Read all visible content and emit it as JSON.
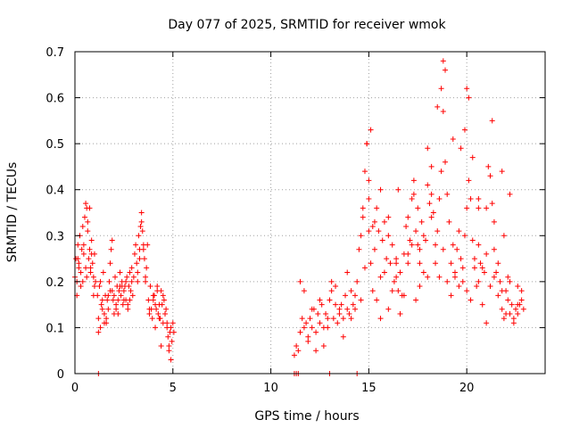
{
  "chart_data": {
    "type": "scatter",
    "title": "Day 077 of 2025, SRMTID for receiver wmok",
    "xlabel": "GPS time / hours",
    "ylabel": "SRMTID / TECUs",
    "xlim": [
      0,
      24
    ],
    "ylim": [
      0,
      0.7
    ],
    "xticks": [
      0,
      5,
      10,
      15,
      20
    ],
    "xtick_labels": [
      "0",
      "5",
      "10",
      "15",
      "20"
    ],
    "yticks": [
      0,
      0.1,
      0.2,
      0.3,
      0.4,
      0.5,
      0.6,
      0.7
    ],
    "ytick_labels": [
      "0",
      "0.1",
      "0.2",
      "0.3",
      "0.4",
      "0.5",
      "0.6",
      "0.7"
    ],
    "grid": true,
    "marker": "+",
    "color": "#ff0000",
    "series": [
      {
        "name": "SRMTID",
        "x": [
          0.0,
          0.05,
          0.1,
          0.15,
          0.2,
          0.25,
          0.3,
          0.35,
          0.4,
          0.45,
          0.5,
          0.55,
          0.6,
          0.65,
          0.7,
          0.75,
          0.8,
          0.85,
          0.9,
          0.95,
          1.0,
          1.05,
          0.1,
          0.2,
          0.3,
          0.45,
          0.55,
          0.65,
          0.75,
          0.85,
          1.0,
          0.15,
          0.4,
          0.6,
          0.8,
          0.95,
          1.15,
          1.2,
          1.25,
          1.3,
          1.35,
          1.4,
          1.45,
          1.5,
          1.55,
          1.6,
          1.65,
          1.7,
          1.75,
          1.8,
          1.85,
          1.9,
          1.95,
          2.0,
          2.05,
          2.1,
          2.15,
          2.2,
          2.25,
          2.3,
          2.35,
          2.4,
          2.45,
          2.5,
          2.55,
          2.6,
          2.65,
          2.7,
          2.75,
          2.8,
          2.85,
          2.9,
          2.95,
          3.0,
          1.2,
          1.4,
          1.6,
          1.8,
          2.0,
          2.2,
          2.4,
          2.6,
          2.8,
          1.3,
          1.5,
          1.7,
          1.9,
          2.1,
          2.3,
          2.5,
          2.7,
          2.9,
          3.05,
          3.1,
          3.15,
          3.2,
          3.25,
          3.3,
          3.35,
          3.4,
          3.45,
          3.5,
          3.55,
          3.6,
          3.65,
          3.7,
          3.75,
          3.8,
          3.85,
          3.9,
          3.95,
          4.0,
          4.05,
          4.1,
          4.15,
          4.2,
          4.25,
          4.3,
          4.35,
          4.4,
          4.45,
          4.5,
          4.55,
          4.6,
          4.65,
          4.7,
          4.75,
          4.8,
          4.85,
          4.9,
          4.95,
          5.0,
          5.05,
          3.2,
          3.4,
          3.6,
          3.8,
          4.0,
          4.2,
          4.4,
          4.6,
          4.8,
          3.3,
          3.5,
          4.1,
          4.3,
          4.5,
          4.7,
          4.9,
          11.2,
          11.3,
          11.4,
          11.5,
          11.6,
          11.7,
          11.8,
          11.9,
          12.0,
          12.1,
          12.2,
          12.3,
          12.4,
          12.5,
          12.6,
          12.7,
          12.8,
          12.9,
          13.0,
          13.1,
          13.2,
          13.3,
          13.4,
          13.5,
          13.6,
          13.7,
          13.8,
          13.9,
          14.0,
          14.1,
          14.2,
          14.3,
          14.4,
          11.5,
          11.7,
          11.9,
          12.1,
          12.3,
          12.5,
          12.7,
          12.9,
          13.1,
          13.3,
          13.5,
          13.7,
          13.9,
          14.1,
          14.3,
          14.5,
          14.6,
          14.7,
          14.8,
          14.9,
          15.0,
          15.1,
          15.2,
          15.3,
          15.4,
          15.5,
          15.6,
          15.7,
          15.8,
          15.9,
          16.0,
          16.1,
          16.2,
          16.3,
          16.4,
          16.5,
          16.6,
          16.7,
          16.8,
          16.9,
          17.0,
          17.1,
          17.2,
          17.3,
          17.4,
          17.5,
          17.6,
          17.7,
          17.8,
          17.9,
          18.0,
          18.1,
          18.2,
          18.3,
          18.4,
          18.5,
          18.6,
          18.7,
          18.8,
          18.9,
          19.0,
          19.1,
          19.2,
          19.3,
          19.4,
          19.5,
          19.6,
          19.7,
          19.8,
          19.9,
          20.0,
          20.1,
          20.2,
          20.3,
          20.4,
          20.5,
          20.6,
          20.7,
          20.8,
          20.9,
          21.0,
          21.1,
          21.2,
          21.3,
          21.4,
          21.5,
          21.6,
          21.7,
          21.8,
          21.9,
          22.0,
          22.1,
          22.2,
          22.3,
          22.4,
          22.5,
          22.6,
          22.7,
          22.8,
          22.9,
          14.6,
          14.8,
          15.0,
          15.2,
          15.4,
          15.6,
          15.8,
          16.0,
          16.2,
          16.4,
          16.6,
          16.8,
          17.0,
          17.2,
          17.4,
          17.6,
          17.8,
          18.0,
          18.2,
          18.4,
          18.6,
          18.8,
          19.0,
          19.2,
          19.4,
          19.6,
          19.8,
          20.0,
          20.2,
          20.4,
          20.6,
          20.8,
          21.0,
          21.2,
          21.4,
          21.6,
          21.8,
          22.0,
          22.2,
          22.4,
          22.6,
          22.8,
          14.7,
          15.0,
          15.3,
          15.6,
          16.0,
          16.5,
          17.0,
          17.5,
          18.0,
          18.5,
          18.9,
          19.3,
          19.7,
          20.0,
          20.3,
          20.6,
          21.0,
          21.4,
          21.8,
          22.2,
          22.6,
          14.9,
          15.1,
          16.4,
          17.3,
          17.6,
          18.2,
          18.7,
          18.8,
          19.9,
          20.1,
          20.6,
          21.3,
          21.9,
          22.1,
          1.2,
          11.2,
          11.3,
          11.4,
          13.0,
          14.4
        ],
        "y": [
          0.21,
          0.25,
          0.2,
          0.28,
          0.24,
          0.3,
          0.22,
          0.27,
          0.32,
          0.26,
          0.34,
          0.37,
          0.36,
          0.33,
          0.25,
          0.27,
          0.22,
          0.26,
          0.24,
          0.21,
          0.19,
          0.2,
          0.17,
          0.23,
          0.19,
          0.28,
          0.23,
          0.31,
          0.36,
          0.29,
          0.26,
          0.25,
          0.2,
          0.21,
          0.23,
          0.17,
          0.17,
          0.12,
          0.19,
          0.1,
          0.15,
          0.14,
          0.22,
          0.13,
          0.17,
          0.11,
          0.16,
          0.14,
          0.2,
          0.18,
          0.27,
          0.29,
          0.16,
          0.17,
          0.21,
          0.15,
          0.19,
          0.13,
          0.18,
          0.22,
          0.17,
          0.2,
          0.15,
          0.18,
          0.19,
          0.16,
          0.21,
          0.14,
          0.19,
          0.22,
          0.18,
          0.2,
          0.17,
          0.21,
          0.09,
          0.16,
          0.12,
          0.24,
          0.13,
          0.16,
          0.19,
          0.2,
          0.16,
          0.2,
          0.11,
          0.17,
          0.18,
          0.14,
          0.19,
          0.16,
          0.15,
          0.23,
          0.26,
          0.28,
          0.24,
          0.22,
          0.3,
          0.27,
          0.32,
          0.35,
          0.31,
          0.27,
          0.25,
          0.2,
          0.23,
          0.28,
          0.16,
          0.13,
          0.19,
          0.14,
          0.12,
          0.16,
          0.17,
          0.1,
          0.14,
          0.18,
          0.13,
          0.15,
          0.12,
          0.18,
          0.15,
          0.11,
          0.16,
          0.13,
          0.14,
          0.1,
          0.08,
          0.06,
          0.09,
          0.1,
          0.07,
          0.11,
          0.09,
          0.2,
          0.33,
          0.21,
          0.14,
          0.17,
          0.19,
          0.06,
          0.13,
          0.05,
          0.25,
          0.28,
          0.15,
          0.12,
          0.17,
          0.11,
          0.03,
          0.04,
          0.06,
          0.05,
          0.09,
          0.12,
          0.1,
          0.11,
          0.08,
          0.12,
          0.1,
          0.14,
          0.09,
          0.13,
          0.11,
          0.15,
          0.1,
          0.13,
          0.12,
          0.16,
          0.18,
          0.12,
          0.15,
          0.11,
          0.13,
          0.15,
          0.12,
          0.17,
          0.14,
          0.13,
          0.18,
          0.15,
          0.17,
          0.2,
          0.2,
          0.18,
          0.07,
          0.14,
          0.05,
          0.16,
          0.06,
          0.1,
          0.2,
          0.19,
          0.14,
          0.08,
          0.22,
          0.12,
          0.14,
          0.27,
          0.3,
          0.34,
          0.44,
          0.5,
          0.38,
          0.24,
          0.32,
          0.27,
          0.36,
          0.31,
          0.4,
          0.29,
          0.33,
          0.25,
          0.3,
          0.24,
          0.28,
          0.2,
          0.25,
          0.18,
          0.22,
          0.17,
          0.26,
          0.32,
          0.34,
          0.29,
          0.38,
          0.42,
          0.31,
          0.36,
          0.27,
          0.33,
          0.3,
          0.29,
          0.41,
          0.37,
          0.45,
          0.35,
          0.28,
          0.31,
          0.38,
          0.62,
          0.57,
          0.46,
          0.39,
          0.33,
          0.24,
          0.28,
          0.22,
          0.27,
          0.31,
          0.25,
          0.2,
          0.3,
          0.36,
          0.42,
          0.38,
          0.29,
          0.23,
          0.19,
          0.28,
          0.24,
          0.15,
          0.22,
          0.26,
          0.45,
          0.43,
          0.37,
          0.27,
          0.22,
          0.17,
          0.2,
          0.14,
          0.12,
          0.18,
          0.16,
          0.13,
          0.15,
          0.12,
          0.14,
          0.13,
          0.15,
          0.16,
          0.14,
          0.16,
          0.23,
          0.31,
          0.18,
          0.16,
          0.12,
          0.22,
          0.14,
          0.18,
          0.21,
          0.13,
          0.17,
          0.24,
          0.28,
          0.16,
          0.19,
          0.22,
          0.21,
          0.34,
          0.24,
          0.21,
          0.27,
          0.2,
          0.17,
          0.21,
          0.19,
          0.23,
          0.18,
          0.16,
          0.25,
          0.2,
          0.23,
          0.11,
          0.19,
          0.21,
          0.24,
          0.18,
          0.13,
          0.2,
          0.11,
          0.19,
          0.18,
          0.36,
          0.42,
          0.33,
          0.21,
          0.34,
          0.4,
          0.26,
          0.28,
          0.49,
          0.58,
          0.66,
          0.51,
          0.49,
          0.62,
          0.47,
          0.36,
          0.36,
          0.33,
          0.44,
          0.39,
          0.15,
          0.5,
          0.53,
          0.24,
          0.39,
          0.24,
          0.39,
          0.44,
          0.68,
          0.53,
          0.6,
          0.38,
          0.55,
          0.3,
          0.21,
          0.0,
          0.0,
          0.0,
          0.0,
          0.0,
          0.0
        ]
      }
    ]
  }
}
